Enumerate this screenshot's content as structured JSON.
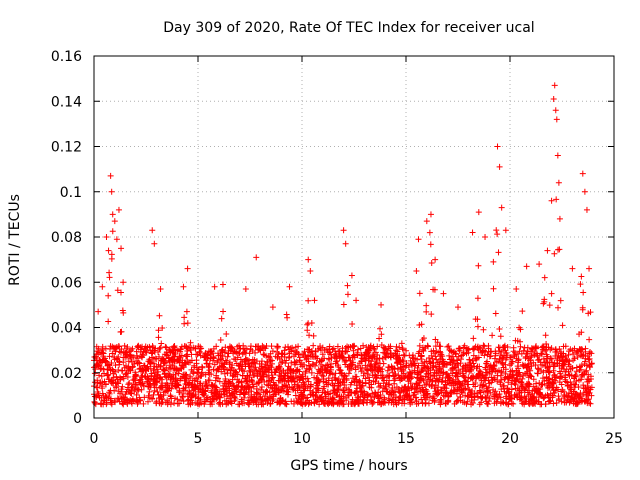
{
  "chart_data": {
    "type": "scatter",
    "title": "Day 309 of 2020, Rate Of TEC Index for receiver ucal",
    "xlabel": "GPS time / hours",
    "ylabel": "ROTI / TECUs",
    "xlim": [
      0,
      25
    ],
    "ylim": [
      0,
      0.16
    ],
    "xticks": [
      0,
      5,
      10,
      15,
      20,
      25
    ],
    "xtick_labels": [
      "0",
      "5",
      "10",
      "15",
      "20",
      "25"
    ],
    "yticks": [
      0,
      0.02,
      0.04,
      0.06,
      0.08,
      0.1,
      0.12,
      0.14,
      0.16
    ],
    "ytick_labels": [
      "0",
      "0.02",
      "0.04",
      "0.06",
      "0.08",
      "0.1",
      "0.12",
      "0.14",
      "0.16"
    ],
    "grid": true,
    "marker": "plus",
    "series_color": "#ff0000",
    "series": [
      {
        "name": "ROTI",
        "envelope_description": "dense band mostly between 0.005 and 0.035 with spikes",
        "points": [
          [
            0.2,
            0.047
          ],
          [
            0.4,
            0.058
          ],
          [
            0.6,
            0.08
          ],
          [
            0.7,
            0.074
          ],
          [
            0.8,
            0.107
          ],
          [
            0.85,
            0.1
          ],
          [
            0.9,
            0.09
          ],
          [
            1.0,
            0.087
          ],
          [
            1.1,
            0.079
          ],
          [
            1.2,
            0.092
          ],
          [
            1.3,
            0.075
          ],
          [
            1.4,
            0.06
          ],
          [
            2.8,
            0.083
          ],
          [
            2.9,
            0.077
          ],
          [
            3.2,
            0.057
          ],
          [
            4.3,
            0.058
          ],
          [
            4.5,
            0.066
          ],
          [
            5.8,
            0.058
          ],
          [
            6.2,
            0.059
          ],
          [
            7.3,
            0.057
          ],
          [
            7.8,
            0.071
          ],
          [
            8.6,
            0.049
          ],
          [
            9.4,
            0.058
          ],
          [
            10.3,
            0.07
          ],
          [
            10.4,
            0.065
          ],
          [
            10.6,
            0.052
          ],
          [
            12.0,
            0.083
          ],
          [
            12.1,
            0.077
          ],
          [
            12.4,
            0.063
          ],
          [
            12.6,
            0.052
          ],
          [
            13.8,
            0.05
          ],
          [
            14.8,
            0.033
          ],
          [
            15.5,
            0.065
          ],
          [
            15.6,
            0.079
          ],
          [
            16.0,
            0.087
          ],
          [
            16.2,
            0.09
          ],
          [
            16.4,
            0.07
          ],
          [
            16.8,
            0.055
          ],
          [
            17.5,
            0.049
          ],
          [
            18.2,
            0.082
          ],
          [
            18.5,
            0.091
          ],
          [
            18.8,
            0.08
          ],
          [
            19.2,
            0.069
          ],
          [
            19.4,
            0.12
          ],
          [
            19.5,
            0.111
          ],
          [
            19.6,
            0.093
          ],
          [
            19.8,
            0.083
          ],
          [
            20.3,
            0.057
          ],
          [
            20.8,
            0.067
          ],
          [
            21.4,
            0.068
          ],
          [
            21.8,
            0.074
          ],
          [
            22.0,
            0.096
          ],
          [
            22.1,
            0.141
          ],
          [
            22.15,
            0.147
          ],
          [
            22.2,
            0.136
          ],
          [
            22.25,
            0.132
          ],
          [
            22.3,
            0.116
          ],
          [
            22.35,
            0.104
          ],
          [
            22.4,
            0.088
          ],
          [
            23.0,
            0.066
          ],
          [
            23.5,
            0.108
          ],
          [
            23.6,
            0.1
          ],
          [
            23.7,
            0.092
          ],
          [
            23.8,
            0.066
          ]
        ]
      }
    ]
  }
}
